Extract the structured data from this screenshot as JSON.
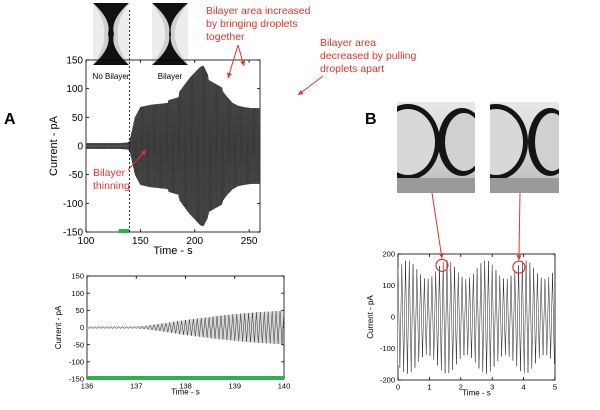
{
  "panels": {
    "a": "A",
    "b": "B"
  },
  "images": {
    "no_bilayer_label": "No Bilayer",
    "bilayer_label": "Bilayer"
  },
  "annotations": {
    "thinning": [
      "Bilayer",
      "thinning"
    ],
    "increase": [
      "Bilayer area increased",
      "by bringing droplets",
      "together"
    ],
    "decrease": [
      "Bilayer area",
      "decreased by pulling",
      "droplets apart"
    ]
  },
  "colors": {
    "annotation": "#e3342a",
    "green_bar": "#2bb24c",
    "trace": "#3a3a3a"
  },
  "chart_data": [
    {
      "id": "main",
      "type": "line",
      "xlabel": "Time - s",
      "ylabel": "Current - pA",
      "xlim": [
        100,
        260
      ],
      "ylim": [
        -150,
        150
      ],
      "xticks": [
        100,
        150,
        200,
        250
      ],
      "yticks": [
        -150,
        -100,
        -50,
        0,
        50,
        100,
        150
      ],
      "dashed_line_x": 140,
      "green_bar_x": [
        130,
        140
      ],
      "envelope": {
        "t": [
          100,
          130,
          138,
          140,
          142,
          145,
          150,
          160,
          175,
          176,
          185,
          186,
          195,
          200,
          205,
          208,
          212,
          213,
          225,
          226,
          230,
          235,
          240,
          245,
          252
        ],
        "amplitude": [
          5,
          5,
          6,
          8,
          25,
          50,
          68,
          72,
          75,
          80,
          85,
          95,
          118,
          128,
          138,
          140,
          125,
          115,
          102,
          95,
          85,
          75,
          70,
          68,
          66
        ]
      }
    },
    {
      "id": "zoom",
      "type": "line",
      "xlabel": "Time - s",
      "ylabel": "Current - pA",
      "xlim": [
        136,
        140
      ],
      "ylim": [
        -150,
        150
      ],
      "xticks": [
        136,
        137,
        138,
        139,
        140
      ],
      "yticks": [
        -150,
        -100,
        -50,
        0,
        50,
        100,
        150
      ],
      "green_bar_x": [
        136,
        140
      ],
      "envelope": {
        "t": [
          136,
          137,
          137.2,
          137.6,
          138,
          138.5,
          139,
          139.5,
          140
        ],
        "amplitude": [
          3,
          3,
          5,
          13,
          22,
          31,
          39,
          45,
          49
        ]
      }
    },
    {
      "id": "b",
      "type": "line",
      "xlabel": "Time - s",
      "ylabel": "Current - pA",
      "xlim": [
        0,
        5
      ],
      "ylim": [
        -200,
        200
      ],
      "xticks": [
        0,
        1,
        2,
        3,
        4,
        5
      ],
      "yticks": [
        -200,
        -100,
        0,
        100,
        200
      ],
      "envelope_mean": 150,
      "envelope_modulation": 30,
      "envelope_period_s": 1.25,
      "circles_x": [
        1.4,
        3.85
      ]
    }
  ]
}
